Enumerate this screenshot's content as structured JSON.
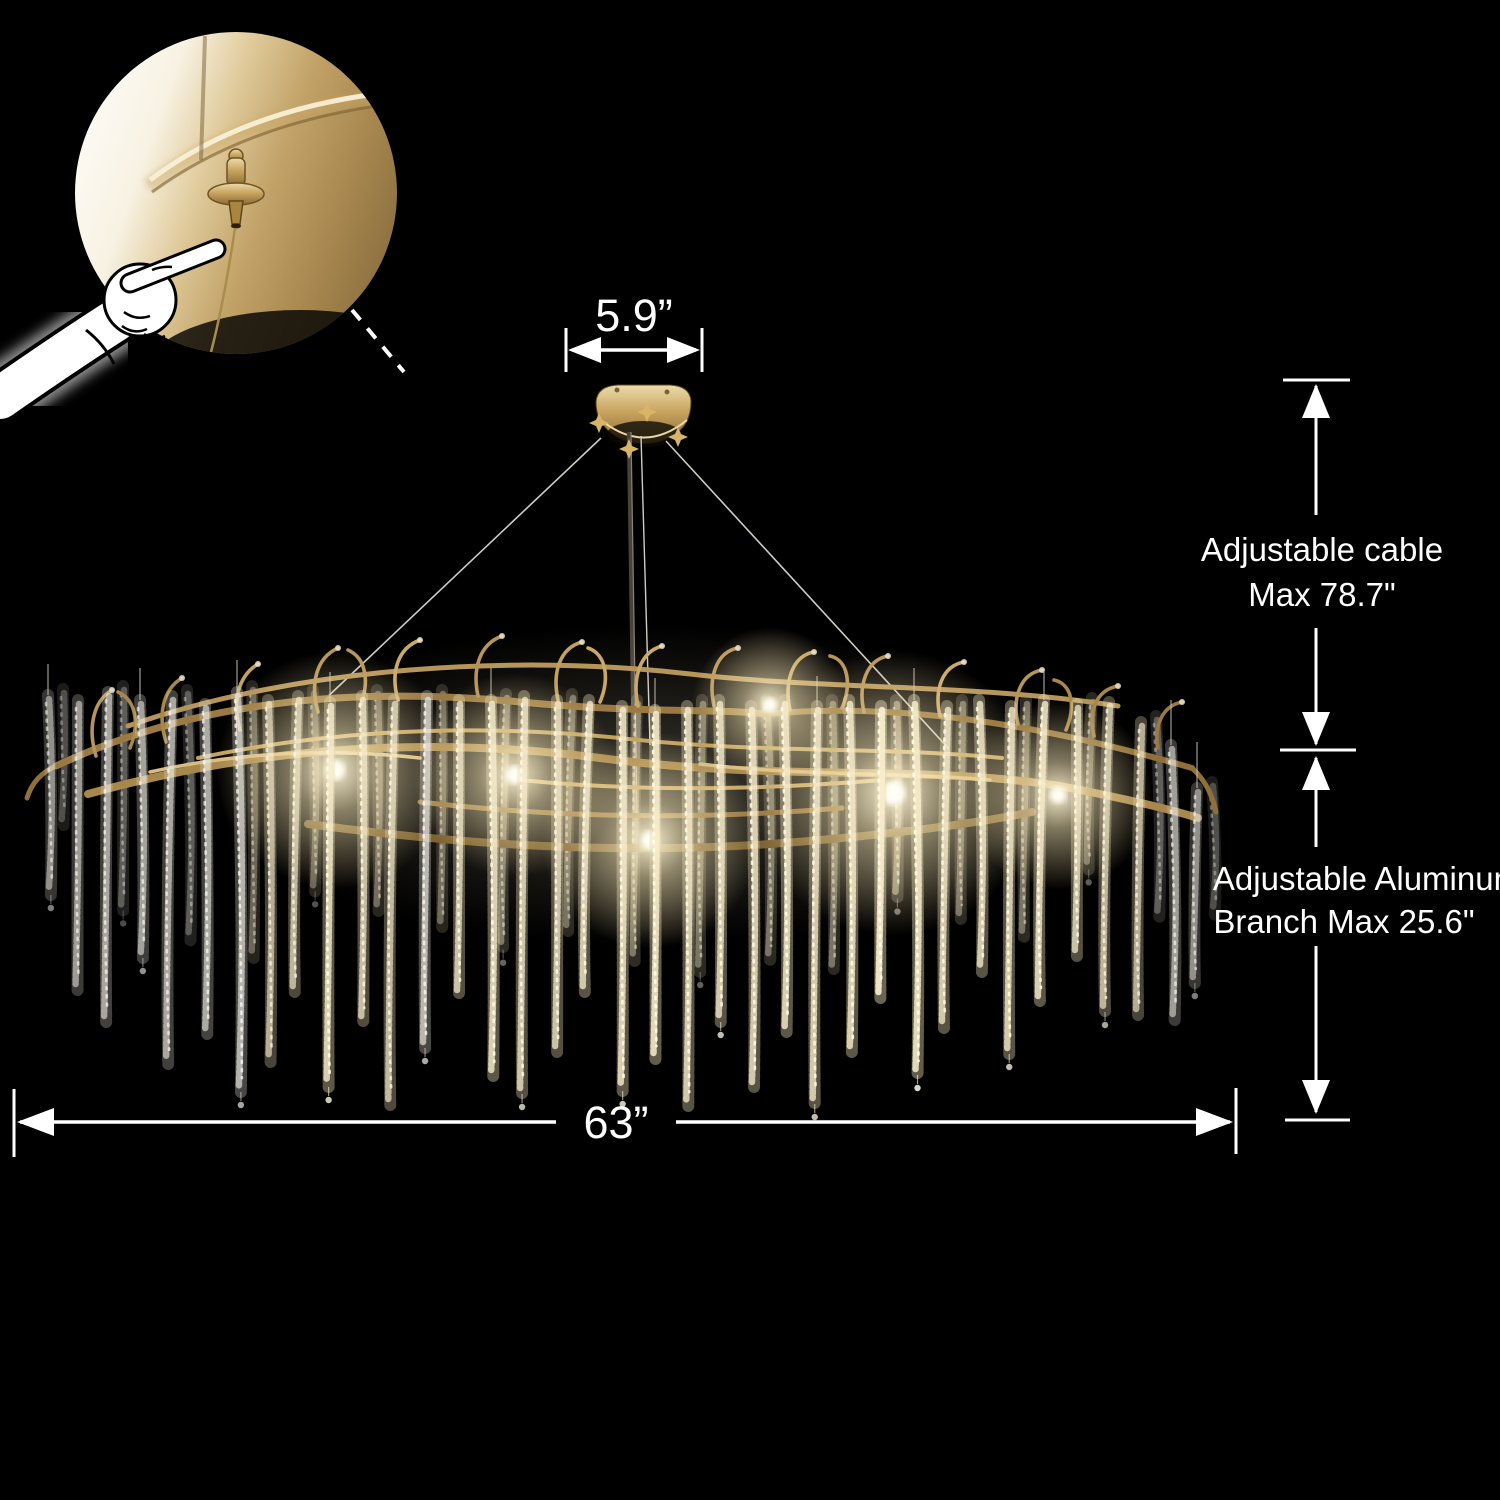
{
  "page": {
    "background": "#000000",
    "annotation_color": "#ffffff"
  },
  "product": {
    "name": "gold branch crystal chandelier",
    "gold": "#c9a96b",
    "branch_dark": "#8a6d3a",
    "crystal": "#ece7da",
    "glow": "#fff3cf",
    "cable_color": "#d8d5cc"
  },
  "dimensions": {
    "canopy_width_label": "5.9”",
    "fixture_width_label": "63”",
    "cable_label_line1": "Adjustable cable",
    "cable_label_line2": "Max 78.7\"",
    "branch_label_line1": "Adjustable Aluminum",
    "branch_label_line2": "Branch Max 25.6\""
  },
  "inset": {
    "icon": "pointing-hand-icon"
  }
}
